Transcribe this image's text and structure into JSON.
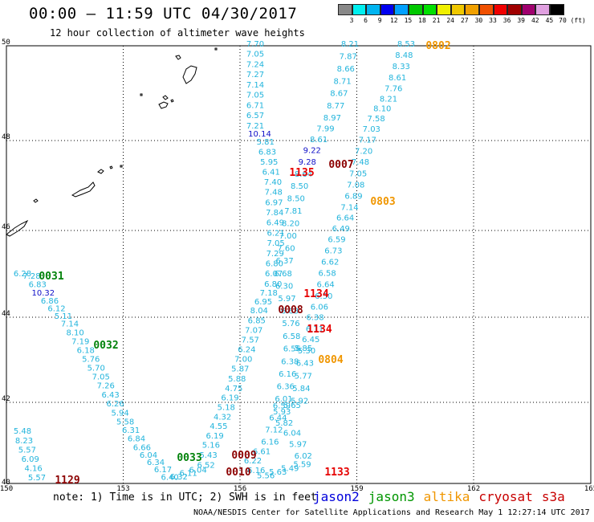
{
  "header": {
    "title": "00:00 – 11:59 UTC 04/30/2017",
    "subtitle": "12 hour collection of altimeter wave heights"
  },
  "legend": {
    "labels": [
      "3",
      "6",
      "9",
      "12",
      "15",
      "18",
      "21",
      "24",
      "27",
      "30",
      "33",
      "36",
      "39",
      "42",
      "45",
      "70 (ft)"
    ],
    "colors": [
      "#888888",
      "#00f0f0",
      "#00b4f0",
      "#0000f0",
      "#00a0ff",
      "#00c800",
      "#00e000",
      "#f0f000",
      "#f0c800",
      "#f0a000",
      "#f05000",
      "#f00000",
      "#a00000",
      "#a0006e",
      "#e0a0e0",
      "#000000"
    ]
  },
  "axes": {
    "x_labels": [
      "150",
      "153",
      "156",
      "159",
      "162",
      "165"
    ],
    "y_labels": [
      "50",
      "48",
      "46",
      "44",
      "42",
      "40"
    ]
  },
  "tracks": [
    {
      "color": "#22b4dc",
      "values": [
        "7.70",
        "7.05",
        "7.24",
        "7.27",
        "7.14",
        "7.05",
        "6.71",
        "6.57",
        "7.21",
        "10.14",
        "5.81",
        "6.83",
        "5.95",
        "6.41",
        "7.40",
        "7.48",
        "6.97",
        "7.84",
        "6.49",
        "6.21",
        "7.05",
        "7.29",
        "6.80",
        "6.07",
        "6.80",
        "7.18",
        "6.95",
        "8.04",
        "6.85",
        "7.07",
        "7.57",
        "6.24",
        "7.00",
        "5.87",
        "5.88",
        "4.75",
        "6.19",
        "5.18",
        "4.32",
        "4.55",
        "6.19",
        "5.16",
        "5.43",
        "6.52",
        "6.04",
        "6.11",
        "6.32",
        "6.40",
        "6.17",
        "6.34",
        "6.04",
        "6.66",
        "6.84",
        "6.31",
        "5.58",
        "5.94",
        "6.26",
        "6.43",
        "7.26",
        "7.05",
        "5.70",
        "5.76",
        "6.18",
        "7.19",
        "8.10",
        "7.14",
        "5.11",
        "6.12",
        "6.86",
        "10.32",
        "6.83",
        "7.28",
        "6.28"
      ]
    },
    {
      "color": "#22b4dc",
      "values": [
        "8.21",
        "7.87",
        "8.66",
        "8.71",
        "8.67",
        "8.77",
        "8.97",
        "7.99",
        "8.61",
        "9.22",
        "9.28",
        "8.64",
        "8.50",
        "8.50",
        "7.81",
        "8.20",
        "7.00",
        "7.60",
        "6.37",
        "6.68",
        "6.30",
        "5.97",
        "6.63",
        "5.76",
        "6.58",
        "6.56",
        "6.38",
        "6.16",
        "6.36",
        "6.01",
        "5.93",
        "5.82",
        "6.04",
        "5.97",
        "6.02",
        "5.59",
        "5.49",
        "5.63",
        "5.56",
        "6.16",
        "6.22",
        "6.61",
        "6.16",
        "7.12",
        "6.44",
        "6.59",
        "5.65",
        "5.92",
        "5.84",
        "5.77",
        "6.43",
        "5.30"
      ]
    },
    {
      "color": "#22b4dc",
      "values": [
        "8.53",
        "8.48",
        "8.33",
        "8.61",
        "7.76",
        "8.21",
        "8.10",
        "7.58",
        "7.03",
        "7.17",
        "7.20",
        "7.48",
        "7.05",
        "7.08",
        "6.89",
        "7.14",
        "6.64",
        "6.49",
        "6.59",
        "6.73",
        "6.62",
        "6.58",
        "6.64",
        "6.50",
        "6.06",
        "6.38",
        "6.11",
        "6.45",
        "5.85"
      ]
    },
    {
      "color": "#22b4dc",
      "values": [
        "5.48",
        "8.23",
        "5.57",
        "6.09",
        "4.16",
        "5.57"
      ]
    }
  ],
  "stamps": [
    {
      "label": "0802",
      "color": "#f09600"
    },
    {
      "label": "0803",
      "color": "#f09600"
    },
    {
      "label": "0804",
      "color": "#f09600"
    },
    {
      "label": "0007",
      "color": "#8c0000"
    },
    {
      "label": "0008",
      "color": "#8c0000"
    },
    {
      "label": "0009",
      "color": "#8c0000"
    },
    {
      "label": "0010",
      "color": "#8c0000"
    },
    {
      "label": "1135",
      "color": "#e60000"
    },
    {
      "label": "1134",
      "color": "#e60000"
    },
    {
      "label": "1134",
      "color": "#e60000"
    },
    {
      "label": "1133",
      "color": "#e60000"
    },
    {
      "label": "1129",
      "color": "#8c0000"
    },
    {
      "label": "0031",
      "color": "#00820a"
    },
    {
      "label": "0032",
      "color": "#00820a"
    },
    {
      "label": "0033",
      "color": "#00820a"
    }
  ],
  "footer": {
    "note": "note: 1) Time is in UTC; 2) SWH is in feet",
    "satellites": [
      {
        "name": "jason2",
        "color": "#0000dc"
      },
      {
        "name": "jason3",
        "color": "#009600"
      },
      {
        "name": "altika",
        "color": "#f09600"
      },
      {
        "name": "cryosat",
        "color": "#c80000"
      },
      {
        "name": "s3a",
        "color": "#c80000"
      }
    ],
    "credit": "NOAA/NESDIS Center for Satellite Applications and Research   May  1 12:27:14 UTC 2017"
  }
}
